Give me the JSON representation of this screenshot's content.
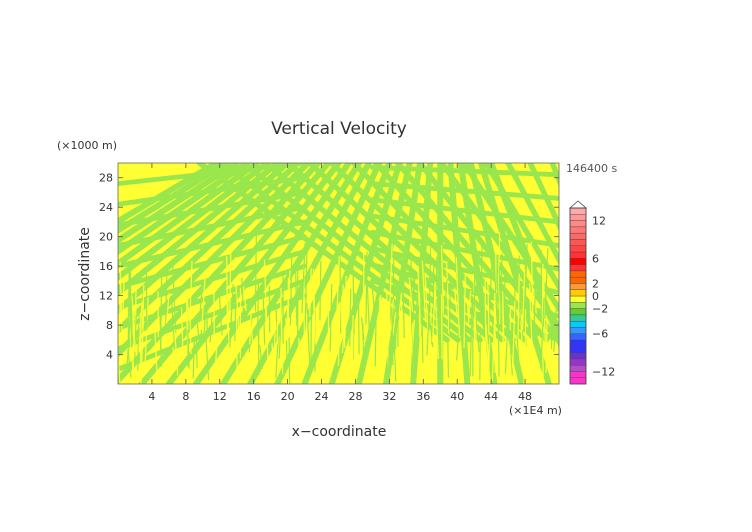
{
  "chart_data": {
    "type": "heatmap",
    "title": "Vertical Velocity",
    "xlabel": "x−coordinate",
    "ylabel": "z−coordinate",
    "x_unit": "(×1E4 m)",
    "y_unit": "(×1000 m)",
    "time_label": "146400 s",
    "xlim": [
      0,
      52
    ],
    "ylim": [
      0,
      30
    ],
    "xticks": [
      "4",
      "8",
      "12",
      "16",
      "20",
      "24",
      "28",
      "32",
      "36",
      "40",
      "44",
      "48"
    ],
    "xtick_values": [
      4,
      8,
      12,
      16,
      20,
      24,
      28,
      32,
      36,
      40,
      44,
      48
    ],
    "yticks": [
      "4",
      "8",
      "12",
      "16",
      "20",
      "24",
      "28"
    ],
    "ytick_values": [
      4,
      8,
      12,
      16,
      20,
      24,
      28
    ],
    "field_colors": {
      "positive": "#ffff33",
      "negative": "#99e64d"
    },
    "colorbar": {
      "levels": [
        -14,
        -13,
        -12,
        -11,
        -10,
        -9,
        -8,
        -7,
        -6,
        -5,
        -4,
        -3,
        -2,
        -1,
        0,
        1,
        2,
        3,
        4,
        5,
        6,
        7,
        8,
        9,
        10,
        11,
        12,
        13,
        14
      ],
      "colors": [
        "#ff33cc",
        "#ff33cc",
        "#b34dcc",
        "#9933cc",
        "#6633cc",
        "#3333ff",
        "#3333ff",
        "#3366ff",
        "#3399ff",
        "#00ccff",
        "#33cc99",
        "#66cc33",
        "#99e64d",
        "#ffff33",
        "#ffcc00",
        "#ff9933",
        "#ff6600",
        "#ff6600",
        "#ff3333",
        "#ff0000",
        "#ff3333",
        "#ff4444",
        "#ff5555",
        "#ff6666",
        "#ff7777",
        "#ff8888",
        "#ff9999",
        "#ffaaaa"
      ],
      "tick_labels": [
        "12",
        "6",
        "2",
        "0",
        "−2",
        "−6",
        "−12"
      ],
      "tick_values": [
        12,
        6,
        2,
        0,
        -2,
        -6,
        -12
      ]
    }
  }
}
